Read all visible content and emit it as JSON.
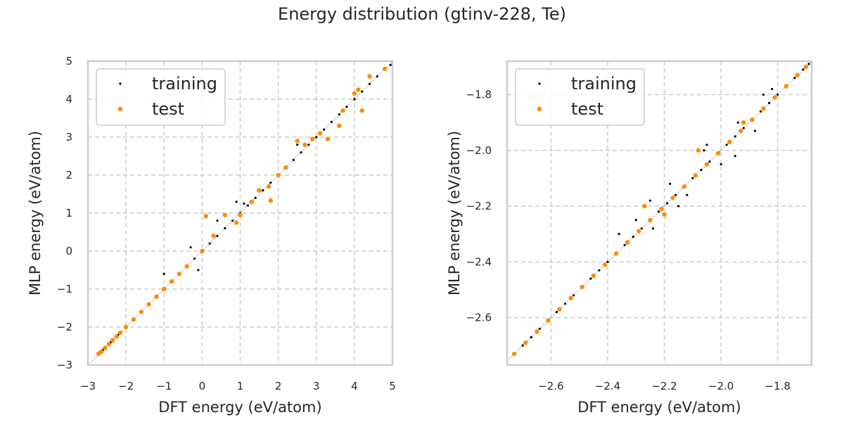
{
  "title": "Energy distribution (gtinv-228, Te)",
  "colors": {
    "training": "#000000",
    "test": "#ff8c00",
    "grid": "#cccccc",
    "frame": "#cccccc",
    "diagonal": "#999999"
  },
  "chart_data": [
    {
      "type": "scatter",
      "xlabel": "DFT energy (eV/atom)",
      "ylabel": "MLP energy (eV/atom)",
      "xlim": [
        -3,
        5
      ],
      "ylim": [
        -3,
        5
      ],
      "xticks": [
        -3,
        -2,
        -1,
        0,
        1,
        2,
        3,
        4,
        5
      ],
      "yticks": [
        -3,
        -2,
        -1,
        0,
        1,
        2,
        3,
        4,
        5
      ],
      "xtick_labels": [
        "−3",
        "−2",
        "−1",
        "0",
        "1",
        "2",
        "3",
        "4",
        "5"
      ],
      "ytick_labels": [
        "−3",
        "−2",
        "−1",
        "0",
        "1",
        "2",
        "3",
        "4",
        "5"
      ],
      "grid": true,
      "legend_position": "top-left",
      "series": [
        {
          "name": "training",
          "color": "#000000",
          "x": [
            -2.72,
            -2.6,
            -2.4,
            -2.2,
            -2.0,
            -1.8,
            -1.6,
            -1.4,
            -1.2,
            -1.0,
            -0.8,
            -0.6,
            -0.4,
            -0.2,
            0.0,
            0.2,
            0.4,
            0.6,
            0.8,
            1.0,
            1.2,
            1.4,
            1.6,
            1.8,
            2.0,
            2.2,
            2.4,
            2.6,
            2.8,
            3.0,
            3.2,
            3.4,
            3.6,
            3.8,
            4.0,
            4.2,
            4.4,
            4.6,
            4.8,
            4.95,
            -0.3,
            0.4,
            0.9,
            1.1,
            -1.0,
            -0.1,
            2.5,
            3.6
          ],
          "y": [
            -2.7,
            -2.6,
            -2.4,
            -2.2,
            -2.0,
            -1.8,
            -1.6,
            -1.4,
            -1.2,
            -1.0,
            -0.8,
            -0.6,
            -0.4,
            -0.2,
            0.0,
            0.2,
            0.4,
            0.6,
            0.8,
            1.0,
            1.2,
            1.4,
            1.6,
            1.8,
            2.0,
            2.2,
            2.4,
            2.6,
            2.8,
            3.0,
            3.2,
            3.4,
            3.6,
            3.8,
            4.0,
            4.2,
            4.4,
            4.6,
            4.8,
            4.9,
            0.1,
            0.8,
            1.3,
            1.25,
            -0.6,
            -0.5,
            2.8,
            3.3
          ]
        },
        {
          "name": "test",
          "color": "#ff8c00",
          "x": [
            -2.72,
            -2.65,
            -2.55,
            -2.45,
            -2.35,
            -2.25,
            -2.15,
            -2.0,
            -1.8,
            -1.6,
            -1.4,
            -1.2,
            -1.0,
            -0.8,
            -0.6,
            -0.4,
            0.0,
            0.1,
            0.3,
            0.6,
            0.9,
            1.0,
            1.3,
            1.5,
            1.75,
            1.8,
            2.0,
            2.2,
            2.5,
            2.7,
            2.9,
            3.1,
            3.3,
            3.6,
            3.7,
            4.0,
            4.1,
            4.2,
            4.4,
            4.8
          ],
          "y": [
            -2.7,
            -2.65,
            -2.55,
            -2.45,
            -2.35,
            -2.25,
            -2.15,
            -2.0,
            -1.8,
            -1.6,
            -1.4,
            -1.2,
            -1.0,
            -0.8,
            -0.6,
            -0.4,
            0.0,
            0.92,
            0.4,
            0.95,
            0.75,
            0.95,
            1.3,
            1.6,
            1.7,
            1.33,
            2.0,
            2.2,
            2.9,
            2.8,
            2.95,
            3.1,
            2.95,
            3.3,
            3.7,
            4.15,
            4.25,
            3.7,
            4.6,
            4.8
          ]
        }
      ]
    },
    {
      "type": "scatter",
      "xlabel": "DFT energy (eV/atom)",
      "ylabel": "MLP energy (eV/atom)",
      "xlim": [
        -2.755,
        -1.68
      ],
      "ylim": [
        -2.77,
        -1.68
      ],
      "xticks": [
        -2.6,
        -2.4,
        -2.2,
        -2.0,
        -1.8
      ],
      "yticks": [
        -2.6,
        -2.4,
        -2.2,
        -2.0,
        -1.8
      ],
      "xtick_labels": [
        "−2.6",
        "−2.4",
        "−2.2",
        "−2.0",
        "−1.8"
      ],
      "ytick_labels": [
        "−2.6",
        "−2.4",
        "−2.2",
        "−2.0",
        "−1.8"
      ],
      "grid": true,
      "legend_position": "top-left",
      "series": [
        {
          "name": "training",
          "color": "#000000",
          "x": [
            -2.73,
            -2.7,
            -2.67,
            -2.64,
            -2.61,
            -2.58,
            -2.55,
            -2.52,
            -2.49,
            -2.46,
            -2.43,
            -2.4,
            -2.37,
            -2.34,
            -2.31,
            -2.28,
            -2.25,
            -2.22,
            -2.19,
            -2.16,
            -2.13,
            -2.1,
            -2.07,
            -2.04,
            -2.01,
            -1.98,
            -1.95,
            -1.92,
            -1.89,
            -1.86,
            -1.83,
            -1.8,
            -1.77,
            -1.74,
            -1.71,
            -1.69,
            -2.36,
            -2.3,
            -2.24,
            -2.18,
            -2.12,
            -2.06,
            -2.0,
            -1.94,
            -1.88,
            -1.82,
            -2.25,
            -2.15,
            -2.05,
            -1.95,
            -1.85
          ],
          "y": [
            -2.73,
            -2.7,
            -2.67,
            -2.64,
            -2.61,
            -2.58,
            -2.55,
            -2.52,
            -2.49,
            -2.46,
            -2.43,
            -2.4,
            -2.37,
            -2.34,
            -2.31,
            -2.28,
            -2.25,
            -2.22,
            -2.19,
            -2.16,
            -2.13,
            -2.1,
            -2.07,
            -2.04,
            -2.01,
            -1.98,
            -1.95,
            -1.92,
            -1.89,
            -1.86,
            -1.83,
            -1.8,
            -1.77,
            -1.74,
            -1.71,
            -1.69,
            -2.3,
            -2.25,
            -2.28,
            -2.12,
            -2.16,
            -2.0,
            -2.05,
            -1.9,
            -1.93,
            -1.78,
            -2.18,
            -2.2,
            -1.98,
            -2.02,
            -1.8
          ]
        },
        {
          "name": "test",
          "color": "#ff8c00",
          "x": [
            -2.73,
            -2.69,
            -2.65,
            -2.61,
            -2.57,
            -2.53,
            -2.49,
            -2.45,
            -2.41,
            -2.37,
            -2.33,
            -2.29,
            -2.25,
            -2.21,
            -2.17,
            -2.13,
            -2.09,
            -2.05,
            -2.01,
            -1.97,
            -1.93,
            -1.89,
            -1.85,
            -1.81,
            -1.77,
            -1.73,
            -1.7,
            -2.27,
            -2.2,
            -2.08,
            -1.92
          ],
          "y": [
            -2.73,
            -2.69,
            -2.65,
            -2.61,
            -2.57,
            -2.53,
            -2.49,
            -2.45,
            -2.41,
            -2.37,
            -2.33,
            -2.29,
            -2.25,
            -2.21,
            -2.17,
            -2.13,
            -2.09,
            -2.05,
            -2.01,
            -1.97,
            -1.93,
            -1.89,
            -1.85,
            -1.81,
            -1.77,
            -1.73,
            -1.7,
            -2.2,
            -2.23,
            -2.0,
            -1.9
          ]
        }
      ]
    }
  ]
}
